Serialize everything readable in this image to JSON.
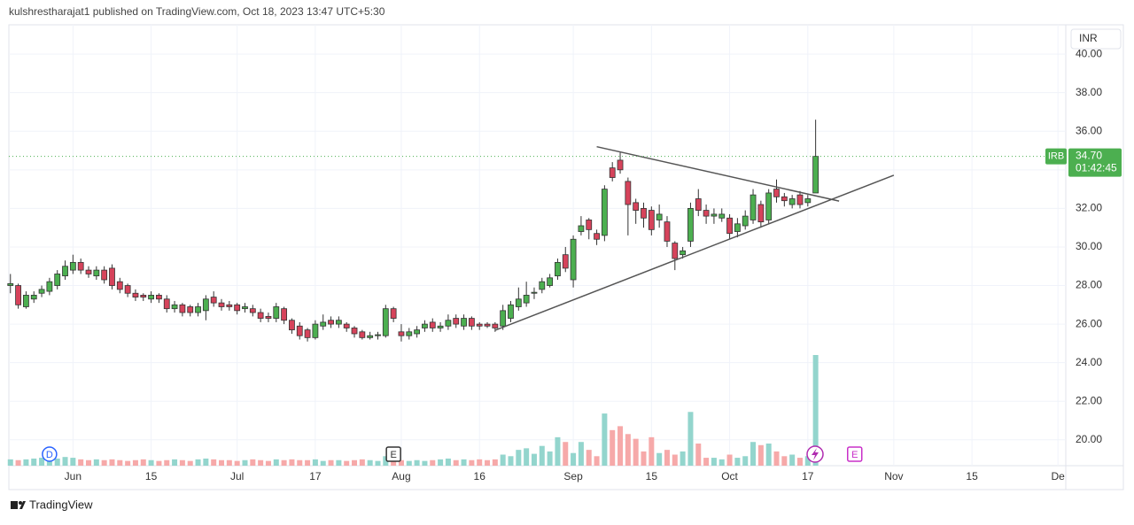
{
  "header": "kulshrestharajat1 published on TradingView.com, Oct 18, 2023 13:47 UTC+5:30",
  "footer": "TradingView",
  "chart_data": {
    "type": "candlestick",
    "currency": "INR",
    "up_color": "#4caf50",
    "down_color": "#d6435b",
    "volume_up_color": "#93d5cd",
    "volume_down_color": "#f6a9a9",
    "open": [
      28.0,
      28.0,
      26.9,
      27.3,
      27.6,
      27.7,
      28.0,
      28.5,
      28.8,
      29.2,
      28.8,
      28.5,
      28.8,
      28.9,
      28.2,
      28.0,
      27.6,
      27.5,
      27.3,
      27.5,
      27.3,
      26.8,
      27.0,
      26.9,
      26.6,
      26.7,
      27.4,
      27.1,
      27.0,
      27.0,
      26.8,
      26.8,
      26.6,
      26.4,
      26.3,
      26.8,
      26.2,
      25.9,
      25.7,
      25.3,
      25.9,
      26.2,
      26.0,
      26.0,
      25.8,
      25.6,
      25.3,
      25.4,
      25.4,
      26.8,
      25.6,
      25.4,
      25.5,
      25.8,
      26.1,
      25.8,
      25.9,
      26.3,
      25.9,
      26.3,
      26.0,
      26.0,
      26.0,
      25.9,
      26.3,
      26.9,
      27.1,
      27.6,
      27.8,
      28.0,
      28.5,
      29.6,
      28.3,
      30.8,
      31.4,
      30.7,
      30.6,
      34.1,
      34.5,
      33.4,
      32.3,
      32.0,
      31.9,
      31.4,
      31.3,
      30.2,
      29.6,
      30.3,
      32.5,
      31.9,
      31.6,
      31.5,
      31.5,
      30.8,
      31.1,
      31.4,
      32.2,
      31.4,
      33.0,
      32.6,
      32.2,
      32.7,
      32.3,
      32.8
    ],
    "high": [
      28.6,
      28.1,
      27.7,
      27.7,
      28.0,
      28.4,
      28.8,
      29.3,
      29.6,
      29.4,
      29.0,
      29.0,
      29.0,
      29.1,
      28.4,
      28.1,
      27.8,
      27.6,
      27.7,
      27.6,
      27.5,
      27.2,
      27.1,
      27.0,
      27.1,
      27.5,
      27.7,
      27.3,
      27.2,
      27.1,
      27.1,
      27.0,
      26.8,
      26.6,
      27.1,
      26.9,
      26.3,
      26.1,
      25.8,
      26.2,
      26.5,
      26.4,
      26.4,
      26.1,
      25.9,
      25.7,
      25.6,
      25.6,
      27.0,
      26.9,
      26.0,
      25.8,
      25.9,
      26.2,
      26.3,
      26.1,
      26.5,
      26.5,
      26.5,
      26.4,
      26.1,
      26.1,
      26.1,
      27.0,
      27.2,
      27.9,
      28.2,
      27.9,
      28.4,
      28.6,
      29.4,
      30.0,
      30.6,
      31.6,
      31.5,
      30.9,
      33.2,
      34.4,
      34.9,
      33.6,
      32.5,
      32.3,
      32.1,
      32.2,
      31.6,
      30.3,
      30.0,
      32.3,
      33.0,
      32.2,
      32.0,
      32.0,
      31.7,
      31.5,
      31.9,
      33.0,
      32.4,
      33.0,
      33.5,
      32.8,
      32.7,
      32.9,
      32.7,
      36.6
    ],
    "low": [
      27.6,
      26.8,
      26.8,
      27.1,
      27.4,
      27.5,
      27.8,
      28.3,
      28.6,
      28.6,
      28.4,
      28.3,
      28.1,
      27.8,
      27.6,
      27.4,
      27.2,
      27.2,
      27.1,
      27.1,
      26.6,
      26.6,
      26.4,
      26.4,
      26.4,
      26.2,
      26.9,
      26.7,
      26.7,
      26.5,
      26.6,
      26.4,
      26.1,
      26.1,
      26.1,
      26.0,
      25.5,
      25.2,
      25.1,
      25.2,
      25.7,
      25.8,
      25.8,
      25.6,
      25.3,
      25.2,
      25.2,
      25.2,
      25.3,
      26.1,
      25.1,
      25.2,
      25.3,
      25.6,
      25.6,
      25.6,
      25.7,
      25.8,
      25.7,
      25.7,
      25.7,
      25.8,
      25.6,
      25.7,
      26.1,
      26.7,
      26.9,
      27.3,
      27.6,
      27.9,
      28.3,
      28.7,
      27.9,
      30.6,
      30.4,
      30.1,
      30.3,
      33.4,
      33.8,
      30.6,
      31.2,
      31.0,
      30.6,
      31.0,
      30.0,
      28.8,
      29.4,
      30.0,
      31.6,
      31.2,
      31.2,
      31.3,
      30.4,
      30.5,
      30.9,
      31.2,
      31.0,
      31.2,
      32.3,
      32.1,
      32.0,
      32.0,
      32.1,
      32.8
    ],
    "close": [
      28.1,
      27.0,
      27.5,
      27.5,
      27.8,
      28.2,
      28.6,
      29.0,
      29.2,
      28.8,
      28.6,
      28.8,
      28.3,
      28.0,
      27.8,
      27.6,
      27.4,
      27.4,
      27.5,
      27.3,
      26.8,
      27.0,
      26.6,
      26.6,
      26.9,
      27.3,
      27.1,
      26.9,
      26.9,
      26.7,
      26.9,
      26.6,
      26.3,
      26.3,
      26.9,
      26.2,
      25.7,
      25.4,
      25.3,
      26.0,
      26.1,
      26.0,
      26.2,
      25.8,
      25.5,
      25.3,
      25.4,
      25.45,
      26.8,
      26.3,
      25.4,
      25.6,
      25.7,
      26.0,
      25.8,
      25.9,
      26.2,
      26.0,
      26.3,
      25.9,
      25.9,
      25.9,
      25.8,
      26.7,
      27.0,
      27.3,
      27.5,
      27.65,
      28.2,
      28.4,
      29.2,
      28.9,
      30.4,
      31.1,
      30.9,
      30.4,
      33.0,
      33.6,
      34.0,
      32.2,
      31.9,
      31.5,
      30.9,
      31.7,
      30.3,
      29.4,
      29.8,
      32.0,
      31.9,
      31.6,
      31.7,
      31.7,
      30.7,
      31.2,
      31.6,
      32.7,
      31.3,
      32.8,
      32.6,
      32.4,
      32.5,
      32.2,
      32.5,
      34.7
    ],
    "volume": [
      8,
      7,
      8,
      9,
      10,
      8,
      9,
      11,
      10,
      8,
      7,
      8,
      7,
      8,
      7,
      6,
      7,
      8,
      7,
      6,
      7,
      8,
      7,
      6,
      8,
      9,
      8,
      7,
      7,
      6,
      7,
      8,
      7,
      6,
      8,
      7,
      8,
      7,
      7,
      8,
      6,
      7,
      7,
      6,
      7,
      8,
      7,
      6,
      12,
      8,
      7,
      6,
      7,
      6,
      7,
      8,
      9,
      7,
      8,
      7,
      8,
      7,
      8,
      14,
      12,
      20,
      22,
      15,
      25,
      18,
      36,
      30,
      16,
      30,
      20,
      12,
      66,
      45,
      50,
      40,
      34,
      18,
      36,
      16,
      20,
      14,
      18,
      68,
      28,
      10,
      10,
      8,
      14,
      10,
      12,
      30,
      26,
      28,
      18,
      12,
      14,
      10,
      12,
      140
    ],
    "ylim": [
      18.66,
      41.52
    ],
    "yticks": [
      {
        "value": 20,
        "label": "20.00"
      },
      {
        "value": 22,
        "label": "22.00"
      },
      {
        "value": 24,
        "label": "24.00"
      },
      {
        "value": 26,
        "label": "26.00"
      },
      {
        "value": 28,
        "label": "28.00"
      },
      {
        "value": 30,
        "label": "30.00"
      },
      {
        "value": 32,
        "label": "32.00"
      },
      {
        "value": 34,
        "label": "34.00"
      },
      {
        "value": 36,
        "label": "36.00"
      },
      {
        "value": 38,
        "label": "38.00"
      },
      {
        "value": 40,
        "label": "40.00"
      }
    ],
    "xlim": [
      -0.2,
      135
    ],
    "xticks": [
      {
        "value": 8,
        "label": "Jun"
      },
      {
        "value": 18,
        "label": "15"
      },
      {
        "value": 29,
        "label": "Jul"
      },
      {
        "value": 39,
        "label": "17"
      },
      {
        "value": 50,
        "label": "Aug"
      },
      {
        "value": 60,
        "label": "16"
      },
      {
        "value": 72,
        "label": "Sep"
      },
      {
        "value": 82,
        "label": "15"
      },
      {
        "value": 92,
        "label": "Oct"
      },
      {
        "value": 102,
        "label": "17"
      },
      {
        "value": 113,
        "label": "Nov"
      },
      {
        "value": 123,
        "label": "15"
      },
      {
        "value": 134,
        "label": "De"
      }
    ],
    "grid": true,
    "trendlines": [
      {
        "color": "#555555",
        "points": [
          [
            75,
            35.2
          ],
          [
            106,
            32.38
          ]
        ]
      },
      {
        "color": "#555555",
        "points": [
          [
            62,
            25.68
          ],
          [
            113,
            33.72
          ]
        ]
      }
    ],
    "last_price": {
      "symbol": "IRB",
      "value": 34.7,
      "value_label": "34.70",
      "countdown": "01:42:45",
      "color": "#4caf50"
    },
    "events": [
      {
        "label": "D",
        "x": 5,
        "color": "#2962ff"
      },
      {
        "label": "E",
        "x": 49,
        "color": "#333333"
      },
      {
        "label": "E",
        "x": 108,
        "color": "#c930c9"
      }
    ]
  }
}
